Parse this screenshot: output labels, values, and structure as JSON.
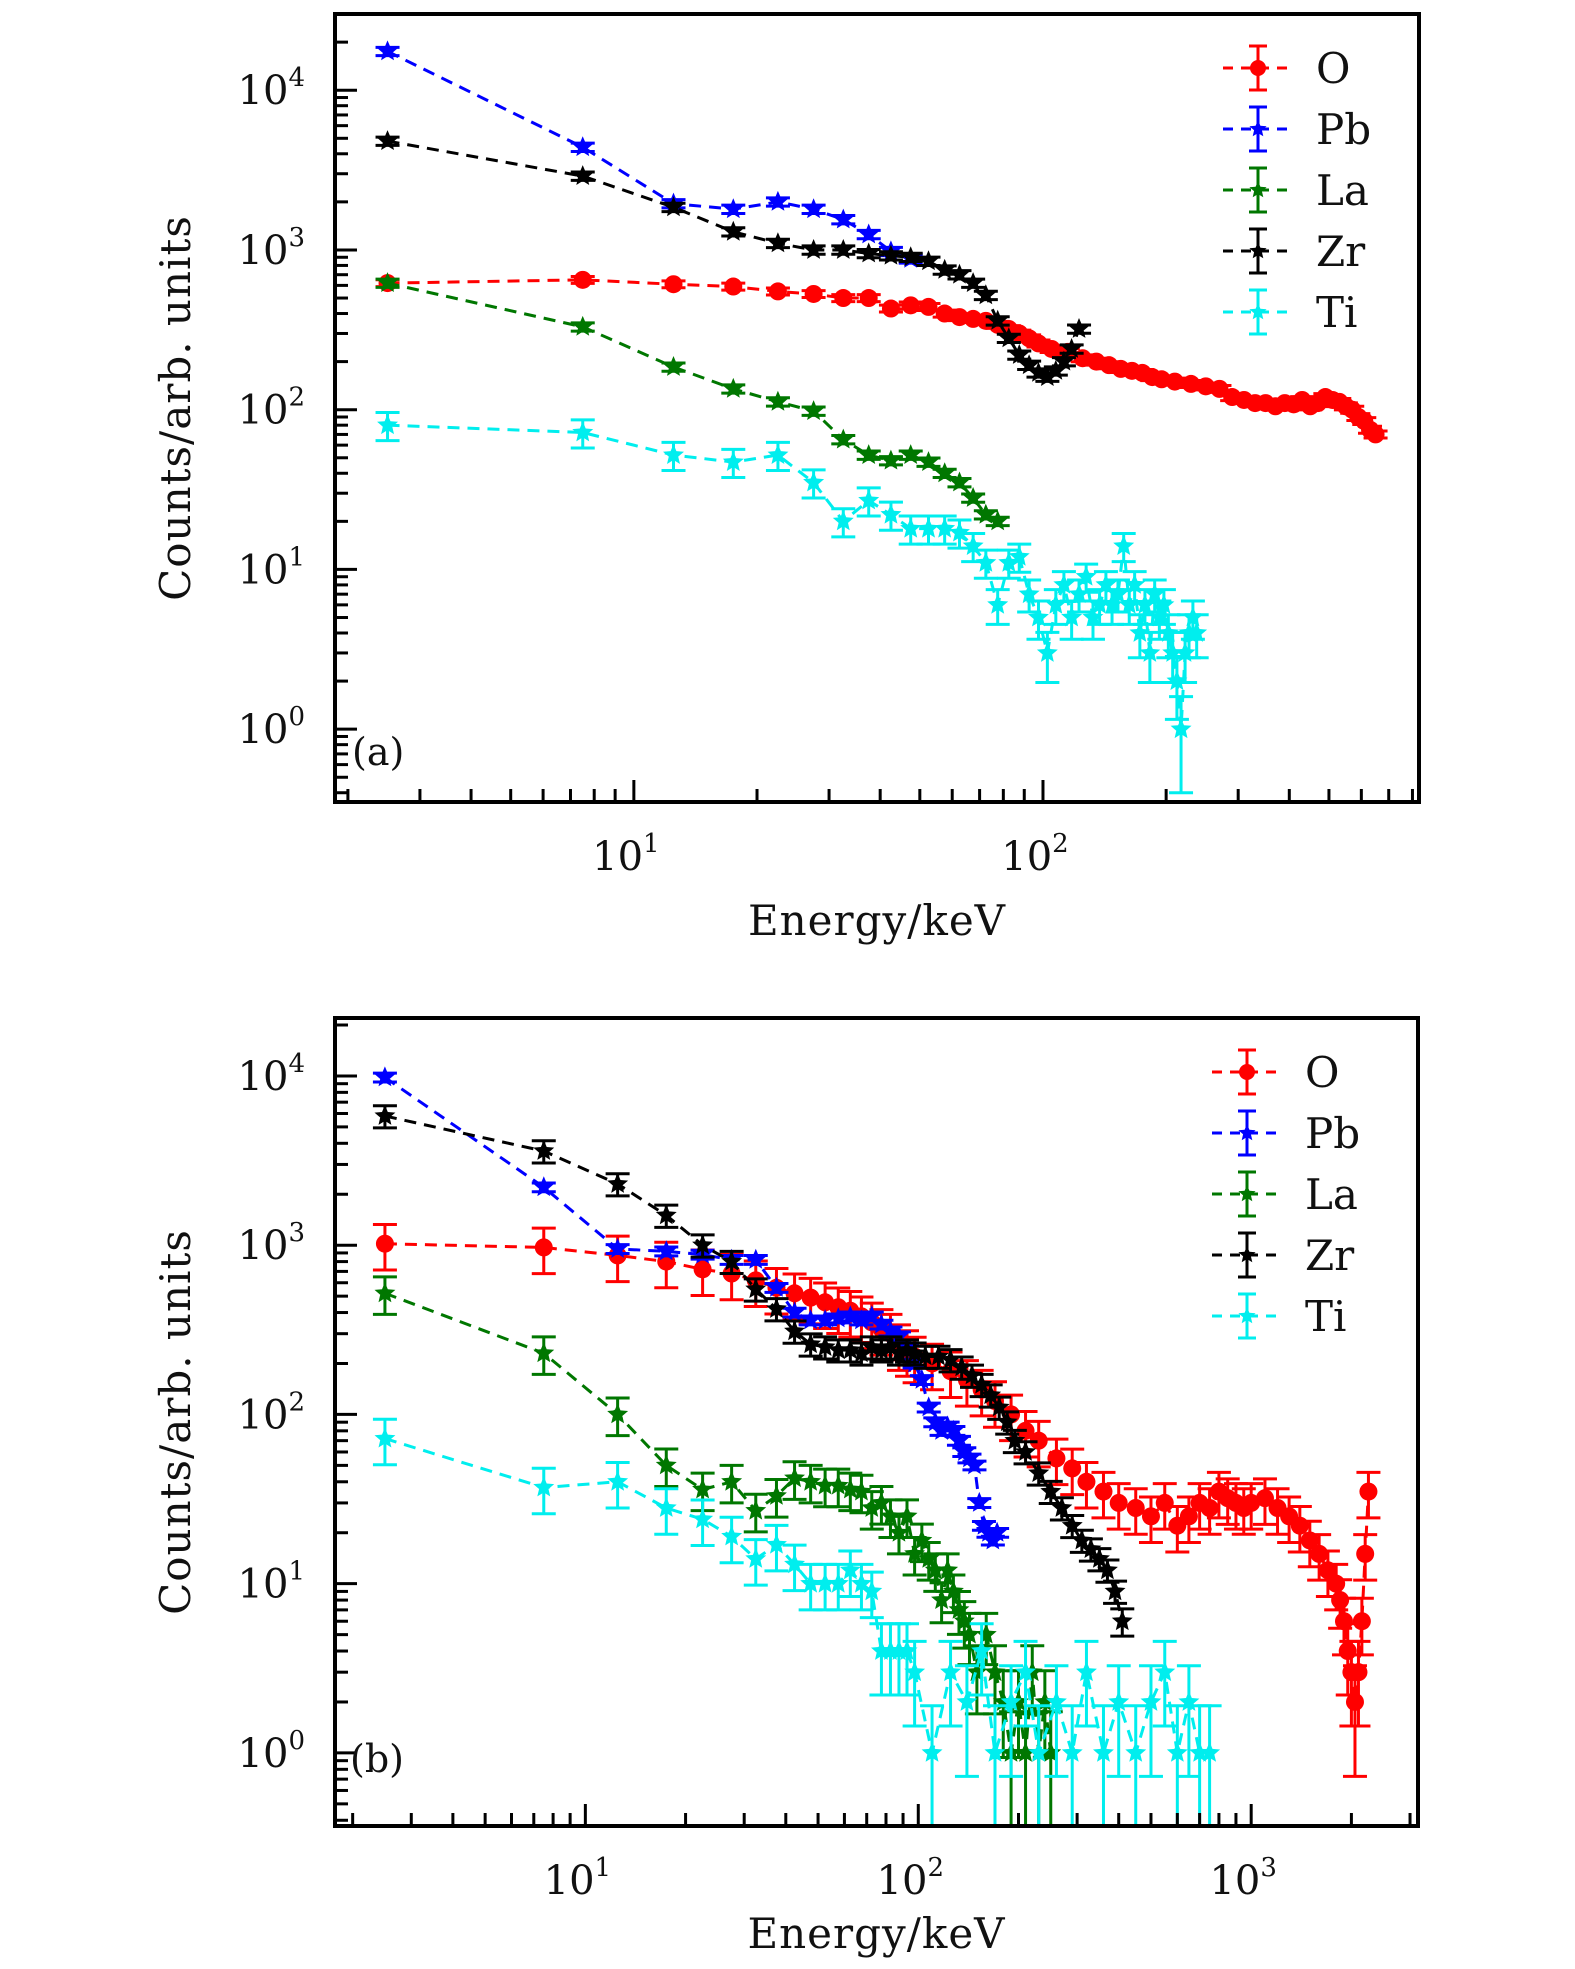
{
  "chart_data": [
    {
      "type": "scatter",
      "panel_label": "(a)",
      "xlabel": "Energy/keV",
      "ylabel": "Counts/arb. units",
      "xscale": "log",
      "yscale": "log",
      "xlim": [
        1.86,
        830
      ],
      "ylim": [
        0.35,
        30000
      ],
      "xticks": [
        {
          "base": "10",
          "exp": "1",
          "value": 10
        },
        {
          "base": "10",
          "exp": "2",
          "value": 100
        }
      ],
      "yticks": [
        {
          "base": "10",
          "exp": "0",
          "value": 1
        },
        {
          "base": "10",
          "exp": "1",
          "value": 10
        },
        {
          "base": "10",
          "exp": "2",
          "value": 100
        },
        {
          "base": "10",
          "exp": "3",
          "value": 1000
        },
        {
          "base": "10",
          "exp": "4",
          "value": 10000
        }
      ],
      "legend_position": "top-right",
      "series": [
        {
          "name": "O",
          "color": "#ff0000",
          "marker": "circle",
          "line": "dashed",
          "x": [
            2.5,
            7.5,
            12.5,
            17.5,
            22.5,
            27.5,
            32.5,
            37.5,
            42.5,
            47.5,
            52.5,
            57.5,
            62.5,
            67.5,
            72.5,
            77.5,
            82.5,
            87.5,
            92.5,
            97.5,
            105,
            115,
            125,
            135,
            145,
            155,
            165,
            175,
            185,
            195,
            210,
            230,
            250,
            270,
            290,
            310,
            330,
            350,
            370,
            390,
            410,
            430,
            450,
            470,
            490,
            510,
            530,
            550,
            570,
            590,
            610,
            630,
            650
          ],
          "y": [
            620,
            650,
            610,
            590,
            550,
            530,
            500,
            500,
            430,
            450,
            440,
            400,
            380,
            370,
            360,
            340,
            320,
            300,
            280,
            260,
            240,
            230,
            210,
            200,
            190,
            180,
            175,
            170,
            160,
            155,
            150,
            145,
            140,
            135,
            120,
            115,
            110,
            110,
            105,
            110,
            108,
            115,
            105,
            110,
            120,
            115,
            112,
            105,
            100,
            90,
            85,
            75,
            70
          ],
          "err": [
            0.05
          ]
        },
        {
          "name": "Pb",
          "color": "#0000ff",
          "marker": "star",
          "line": "dashed",
          "x": [
            2.5,
            7.5,
            12.5,
            17.5,
            22.5,
            27.5,
            32.5,
            37.5,
            42.5,
            47.5
          ],
          "y": [
            17500,
            4400,
            1950,
            1800,
            2000,
            1800,
            1550,
            1250,
            980,
            880
          ]
        },
        {
          "name": "La",
          "color": "#007700",
          "marker": "star",
          "line": "dashed",
          "x": [
            2.5,
            7.5,
            12.5,
            17.5,
            22.5,
            27.5,
            32.5,
            37.5,
            42.5,
            47.5,
            52.5,
            57.5,
            62.5,
            67.5,
            72.5,
            77.5
          ],
          "y": [
            620,
            330,
            185,
            135,
            112,
            98,
            65,
            52,
            48,
            52,
            47,
            40,
            35,
            28,
            22,
            20
          ]
        },
        {
          "name": "Zr",
          "color": "#000000",
          "marker": "star",
          "line": "dashed",
          "x": [
            2.5,
            7.5,
            12.5,
            17.5,
            22.5,
            27.5,
            32.5,
            37.5,
            42.5,
            47.5,
            52.5,
            57.5,
            62.5,
            67.5,
            72.5,
            77.5,
            82.5,
            87.5,
            92.5,
            97.5,
            102.5,
            107.5,
            112.5,
            117.5,
            122.5
          ],
          "y": [
            4800,
            2900,
            1850,
            1300,
            1100,
            1000,
            1000,
            950,
            920,
            900,
            850,
            750,
            700,
            620,
            520,
            360,
            280,
            220,
            190,
            170,
            160,
            175,
            200,
            240,
            320
          ]
        },
        {
          "name": "Ti",
          "color": "#00eeee",
          "marker": "star",
          "line": "dashed",
          "x": [
            2.5,
            7.5,
            12.5,
            17.5,
            22.5,
            27.5,
            32.5,
            37.5,
            42.5,
            47.5,
            52.5,
            57.5,
            62.5,
            67.5,
            72.5,
            77.5,
            82.5,
            87.5,
            92.5,
            97.5,
            102.5,
            107.5,
            112.5,
            117.5,
            122.5,
            127.5,
            132.5,
            137.5,
            142.5,
            147.5,
            152.5,
            157.5,
            162.5,
            167.5,
            172.5,
            177.5,
            182.5,
            187.5,
            192.5,
            197.5,
            202.5,
            207.5,
            212.5,
            217.5,
            222.5,
            227.5,
            232.5,
            237.5
          ],
          "y": [
            80,
            72,
            52,
            47,
            52,
            35,
            20,
            27,
            22,
            18,
            18,
            18,
            17,
            14,
            11,
            6,
            11,
            12,
            7,
            5,
            3,
            6,
            8,
            5,
            7,
            9,
            5,
            6,
            8,
            6,
            7,
            14,
            6,
            8,
            4,
            6,
            3,
            7,
            5,
            6,
            4,
            3,
            2,
            1,
            3,
            4,
            5,
            4
          ],
          "err": [
            0.2
          ]
        }
      ]
    },
    {
      "type": "scatter",
      "panel_label": "(b)",
      "xlabel": "Energy/keV",
      "ylabel": "Counts/arb. units",
      "xscale": "log",
      "yscale": "log",
      "xlim": [
        1.77,
        3170
      ],
      "ylim": [
        0.37,
        22000
      ],
      "xticks": [
        {
          "base": "10",
          "exp": "1",
          "value": 10
        },
        {
          "base": "10",
          "exp": "2",
          "value": 100
        },
        {
          "base": "10",
          "exp": "3",
          "value": 1000
        }
      ],
      "yticks": [
        {
          "base": "10",
          "exp": "0",
          "value": 1
        },
        {
          "base": "10",
          "exp": "1",
          "value": 10
        },
        {
          "base": "10",
          "exp": "2",
          "value": 100
        },
        {
          "base": "10",
          "exp": "3",
          "value": 1000
        },
        {
          "base": "10",
          "exp": "4",
          "value": 10000
        }
      ],
      "legend_position": "top-right",
      "series": [
        {
          "name": "O",
          "color": "#ff0000",
          "marker": "circle",
          "line": "dashed",
          "x": [
            2.5,
            7.5,
            12.5,
            17.5,
            22.5,
            27.5,
            32.5,
            37.5,
            42.5,
            47.5,
            52.5,
            57.5,
            62.5,
            67.5,
            72.5,
            77.5,
            82.5,
            87.5,
            92.5,
            97.5,
            110,
            125,
            140,
            155,
            170,
            190,
            210,
            230,
            260,
            290,
            320,
            360,
            400,
            450,
            500,
            550,
            600,
            650,
            700,
            750,
            800,
            850,
            900,
            950,
            1000,
            1100,
            1200,
            1300,
            1400,
            1500,
            1600,
            1700,
            1800,
            1850,
            1900,
            1950,
            2000,
            2050,
            2100,
            2150,
            2200,
            2250
          ],
          "y": [
            1020,
            970,
            870,
            800,
            720,
            680,
            620,
            560,
            520,
            490,
            460,
            430,
            410,
            380,
            350,
            320,
            300,
            260,
            240,
            220,
            200,
            180,
            160,
            140,
            120,
            100,
            80,
            70,
            55,
            48,
            40,
            35,
            30,
            28,
            25,
            30,
            22,
            25,
            30,
            28,
            35,
            32,
            30,
            28,
            30,
            32,
            28,
            25,
            22,
            18,
            15,
            12,
            10,
            8,
            6,
            4,
            3,
            2,
            3,
            6,
            15,
            35
          ],
          "err": [
            0.3
          ]
        },
        {
          "name": "Pb",
          "color": "#0000ff",
          "marker": "star",
          "line": "dashed",
          "x": [
            2.5,
            7.5,
            12.5,
            17.5,
            22.5,
            27.5,
            32.5,
            37.5,
            42.5,
            47.5,
            52.5,
            57.5,
            62.5,
            67.5,
            72.5,
            77.5,
            82.5,
            87.5,
            92.5,
            97.5,
            102.5,
            107.5,
            112.5,
            117.5,
            122.5,
            127.5,
            132.5,
            137.5,
            142.5,
            147.5,
            152.5,
            157.5,
            162.5,
            167.5,
            172.5
          ],
          "y": [
            9800,
            2200,
            950,
            920,
            880,
            820,
            820,
            560,
            400,
            360,
            360,
            370,
            380,
            360,
            380,
            340,
            310,
            290,
            240,
            200,
            160,
            110,
            90,
            80,
            85,
            80,
            70,
            60,
            55,
            50,
            30,
            22,
            20,
            18,
            20
          ]
        },
        {
          "name": "La",
          "color": "#007700",
          "marker": "star",
          "line": "dashed",
          "x": [
            2.5,
            7.5,
            12.5,
            17.5,
            22.5,
            27.5,
            32.5,
            37.5,
            42.5,
            47.5,
            52.5,
            57.5,
            62.5,
            67.5,
            72.5,
            77.5,
            82.5,
            87.5,
            92.5,
            97.5,
            102.5,
            107.5,
            112.5,
            117.5,
            122.5,
            127.5,
            132.5,
            137.5,
            142.5,
            150,
            160,
            170,
            180,
            190,
            200,
            210,
            220,
            230,
            240,
            250
          ],
          "y": [
            520,
            230,
            100,
            50,
            36,
            40,
            27,
            33,
            42,
            40,
            38,
            38,
            36,
            35,
            28,
            30,
            25,
            20,
            25,
            15,
            18,
            14,
            12,
            8,
            12,
            9,
            7,
            6,
            5,
            3,
            5,
            3,
            2,
            1,
            2,
            1,
            3,
            1,
            2,
            1
          ],
          "err": [
            0.25
          ]
        },
        {
          "name": "Zr",
          "color": "#000000",
          "marker": "star",
          "line": "dashed",
          "x": [
            2.5,
            7.5,
            12.5,
            17.5,
            22.5,
            27.5,
            32.5,
            37.5,
            42.5,
            47.5,
            52.5,
            57.5,
            62.5,
            67.5,
            72.5,
            77.5,
            82.5,
            87.5,
            92.5,
            97.5,
            105,
            115,
            125,
            135,
            145,
            155,
            165,
            175,
            185,
            195,
            210,
            230,
            250,
            270,
            290,
            310,
            330,
            350,
            370,
            390,
            410
          ],
          "y": [
            5800,
            3600,
            2300,
            1500,
            1000,
            800,
            550,
            420,
            310,
            260,
            250,
            240,
            240,
            230,
            250,
            240,
            250,
            230,
            240,
            230,
            220,
            220,
            210,
            190,
            170,
            150,
            130,
            110,
            90,
            70,
            60,
            45,
            35,
            28,
            22,
            18,
            16,
            14,
            12,
            9,
            6
          ],
          "err": [
            0.15
          ]
        },
        {
          "name": "Ti",
          "color": "#00eeee",
          "marker": "star",
          "line": "dashed",
          "x": [
            2.5,
            7.5,
            12.5,
            17.5,
            22.5,
            27.5,
            32.5,
            37.5,
            42.5,
            47.5,
            52.5,
            57.5,
            62.5,
            67.5,
            72.5,
            77.5,
            82.5,
            87.5,
            92.5,
            97.5,
            110,
            125,
            140,
            155,
            170,
            190,
            210,
            230,
            260,
            290,
            320,
            360,
            400,
            450,
            500,
            550,
            600,
            650,
            700,
            750
          ],
          "y": [
            72,
            37,
            40,
            28,
            24,
            19,
            14,
            17,
            13,
            10,
            10,
            10,
            12,
            10,
            9,
            4,
            4,
            4,
            4,
            3,
            1,
            3,
            2,
            4,
            1,
            2,
            3,
            1,
            2,
            1,
            3,
            1,
            2,
            1,
            2,
            3,
            1,
            2,
            1,
            1
          ],
          "err": [
            0.3
          ]
        }
      ]
    }
  ]
}
